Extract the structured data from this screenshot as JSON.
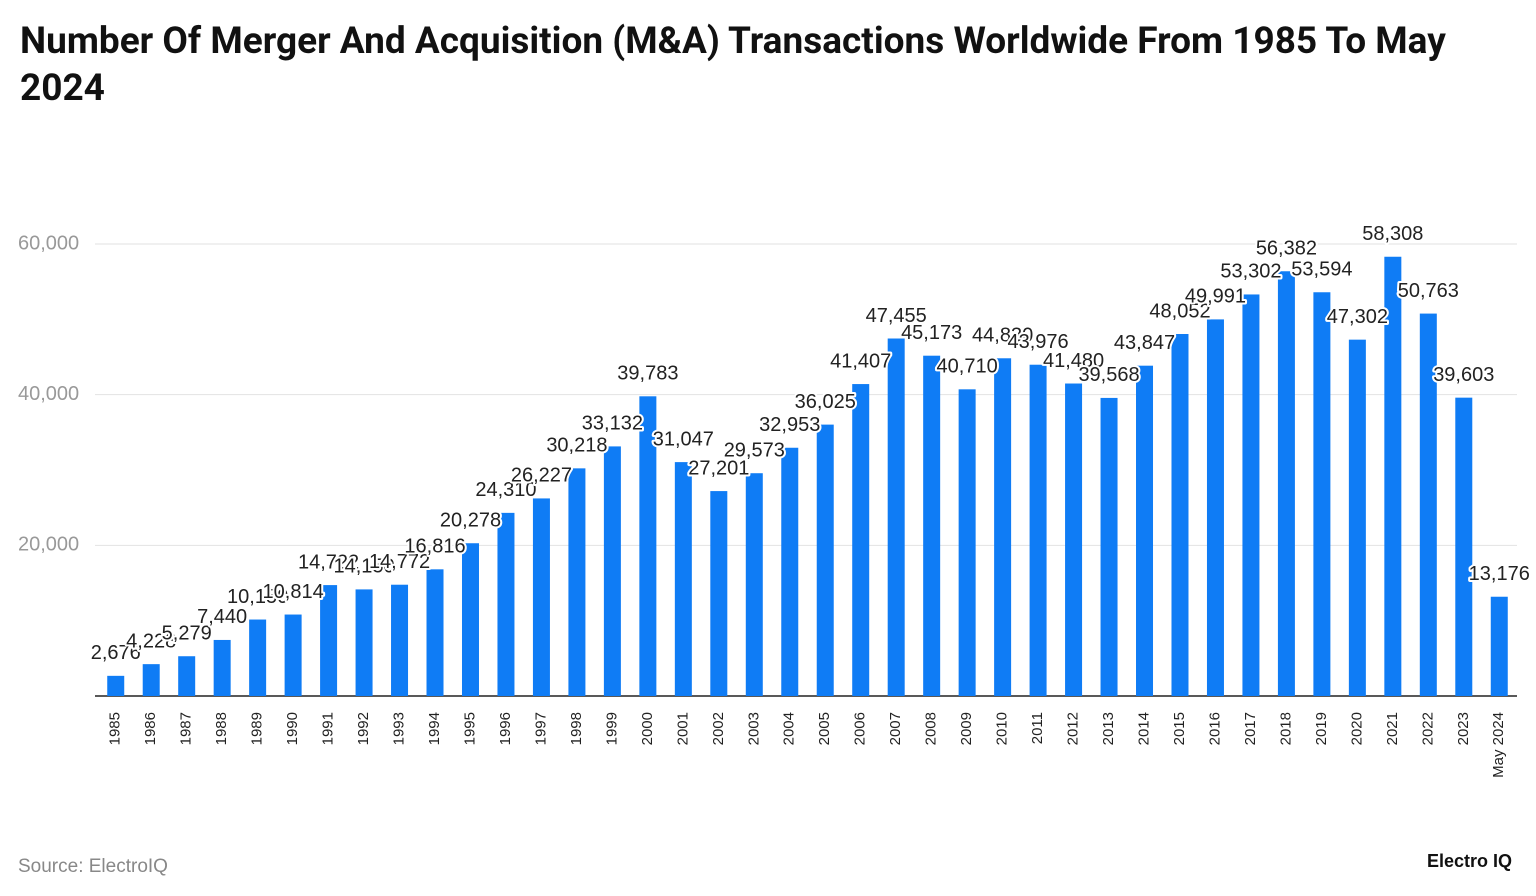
{
  "chart_data": {
    "type": "bar",
    "title": "Number Of Merger And Acquisition (M&A) Transactions Worldwide From 1985 To May 2024",
    "source": "Source: ElectroIQ",
    "brand": "Electro IQ",
    "categories": [
      "1985",
      "1986",
      "1987",
      "1988",
      "1989",
      "1990",
      "1991",
      "1992",
      "1993",
      "1994",
      "1995",
      "1996",
      "1997",
      "1998",
      "1999",
      "2000",
      "2001",
      "2002",
      "2003",
      "2004",
      "2005",
      "2006",
      "2007",
      "2008",
      "2009",
      "2010",
      "2011",
      "2012",
      "2013",
      "2014",
      "2015",
      "2016",
      "2017",
      "2018",
      "2019",
      "2020",
      "2021",
      "2022",
      "2023",
      "May 2024"
    ],
    "values": [
      2676,
      4228,
      5279,
      7440,
      10150,
      10814,
      14722,
      14150,
      14772,
      16816,
      20278,
      24310,
      26227,
      30218,
      33132,
      39783,
      31047,
      27201,
      29573,
      32953,
      36025,
      41407,
      47455,
      45173,
      40710,
      44830,
      43976,
      41480,
      39568,
      43847,
      48052,
      49991,
      53302,
      56382,
      53594,
      47302,
      58308,
      50763,
      39603,
      13176
    ],
    "value_labels": [
      "2,676",
      "4,228",
      "5,279",
      "7,440",
      "10,150",
      "10,814",
      "14,722",
      "14,150",
      "14,772",
      "16,816",
      "20,278",
      "24,310",
      "26,227",
      "30,218",
      "33,132",
      "39,783",
      "31,047",
      "27,201",
      "29,573",
      "32,953",
      "36,025",
      "41,407",
      "47,455",
      "45,173",
      "40,710",
      "44,830",
      "43,976",
      "41,480",
      "39,568",
      "43,847",
      "48,052",
      "49,991",
      "53,302",
      "56,382",
      "53,594",
      "47,302",
      "58,308",
      "50,763",
      "39,603",
      "13,176"
    ],
    "color": "#0f7cf5",
    "ylim": [
      0,
      60000
    ],
    "yticks": [
      {
        "value": 20000,
        "label": "20,000"
      },
      {
        "value": 40000,
        "label": "40,000"
      },
      {
        "value": 60000,
        "label": "60,000"
      }
    ],
    "grid": true
  }
}
